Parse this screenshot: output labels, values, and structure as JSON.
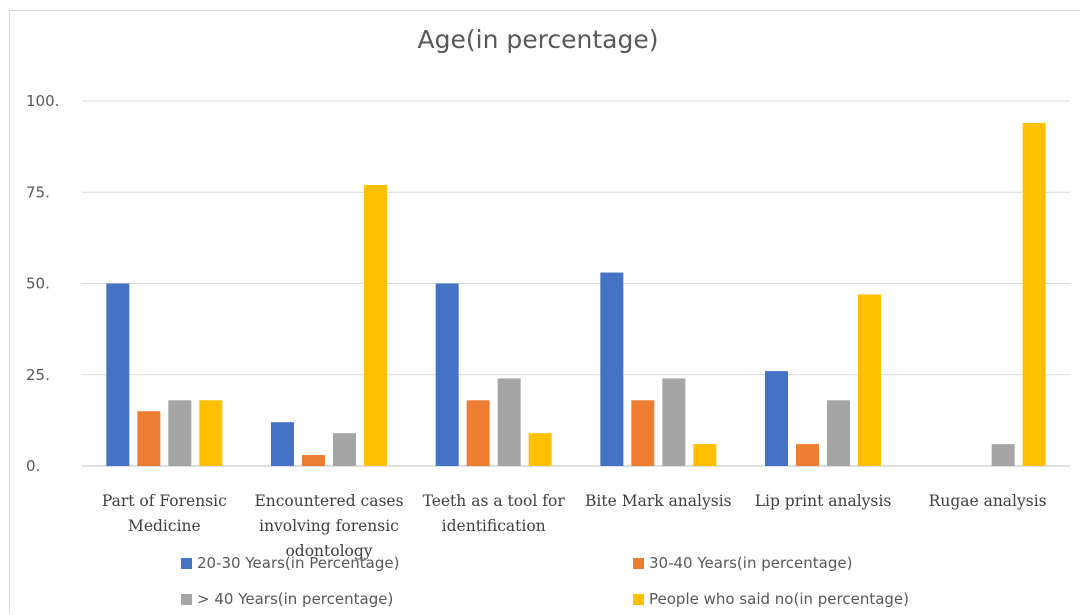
{
  "chart_data": {
    "type": "bar",
    "title": "Age(in percentage)",
    "categories": [
      [
        "Part of Forensic",
        "Medicine"
      ],
      [
        "Encountered cases",
        "involving forensic",
        "odontology"
      ],
      [
        "Teeth  as a tool for",
        "identification"
      ],
      [
        "Bite Mark analysis"
      ],
      [
        "Lip print analysis"
      ],
      [
        "Rugae analysis"
      ]
    ],
    "yticks": [
      "0.",
      "25.",
      "50.",
      "75.",
      "100."
    ],
    "ylim": [
      0,
      100
    ],
    "grid": true,
    "legend_position": "bottom",
    "series": [
      {
        "name": "20-30 Years(in Percentage)",
        "color": "#4472c4",
        "values": [
          50,
          12,
          50,
          53,
          26,
          0
        ]
      },
      {
        "name": "30-40 Years(in percentage)",
        "color": "#ed7d31",
        "values": [
          15,
          3,
          18,
          18,
          6,
          0
        ]
      },
      {
        "name": "> 40 Years(in percentage)",
        "color": "#a5a5a5",
        "values": [
          18,
          9,
          24,
          24,
          18,
          6
        ]
      },
      {
        "name": "People who said no(in percentage)",
        "color": "#ffc000",
        "values": [
          18,
          77,
          9,
          6,
          47,
          94
        ]
      }
    ]
  }
}
